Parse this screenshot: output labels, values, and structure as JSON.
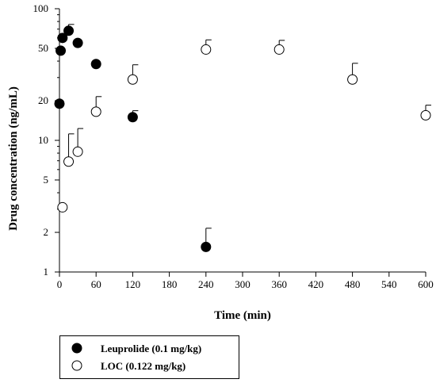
{
  "chart_data": {
    "type": "scatter",
    "xlabel": "Time (min)",
    "ylabel": "Drug concentration (ng/mL)",
    "x_scale": "linear",
    "y_scale": "log",
    "xlim": [
      0,
      600
    ],
    "ylim": [
      1,
      100
    ],
    "x_ticks": [
      "0",
      "60",
      "120",
      "180",
      "240",
      "300",
      "360",
      "420",
      "480",
      "540",
      "600"
    ],
    "y_ticks": [
      "1",
      "2",
      "5",
      "10",
      "20",
      "50",
      "100"
    ],
    "grid": false,
    "legend_position": "bottom-left",
    "series": [
      {
        "name": "Leuprolide (0.1 mg/kg)",
        "marker": "filled-circle",
        "points": [
          {
            "x": 0,
            "y": 19
          },
          {
            "x": 2,
            "y": 48
          },
          {
            "x": 5,
            "y": 60
          },
          {
            "x": 15,
            "y": 68,
            "err": 8
          },
          {
            "x": 30,
            "y": 55
          },
          {
            "x": 60,
            "y": 38
          },
          {
            "x": 120,
            "y": 15,
            "err": 1.8
          },
          {
            "x": 240,
            "y": 1.55,
            "err": 0.6
          }
        ]
      },
      {
        "name": "LOC (0.122 mg/kg)",
        "marker": "open-circle",
        "points": [
          {
            "x": 5,
            "y": 3.1
          },
          {
            "x": 15,
            "y": 6.9,
            "err": 4.3
          },
          {
            "x": 30,
            "y": 8.2,
            "err": 4.1
          },
          {
            "x": 60,
            "y": 16.5,
            "err": 5
          },
          {
            "x": 120,
            "y": 29,
            "err": 8.5
          },
          {
            "x": 240,
            "y": 49,
            "err": 9
          },
          {
            "x": 360,
            "y": 49,
            "err": 8.5
          },
          {
            "x": 480,
            "y": 29,
            "err": 9.5
          },
          {
            "x": 600,
            "y": 15.5,
            "err": 3
          }
        ]
      }
    ]
  }
}
